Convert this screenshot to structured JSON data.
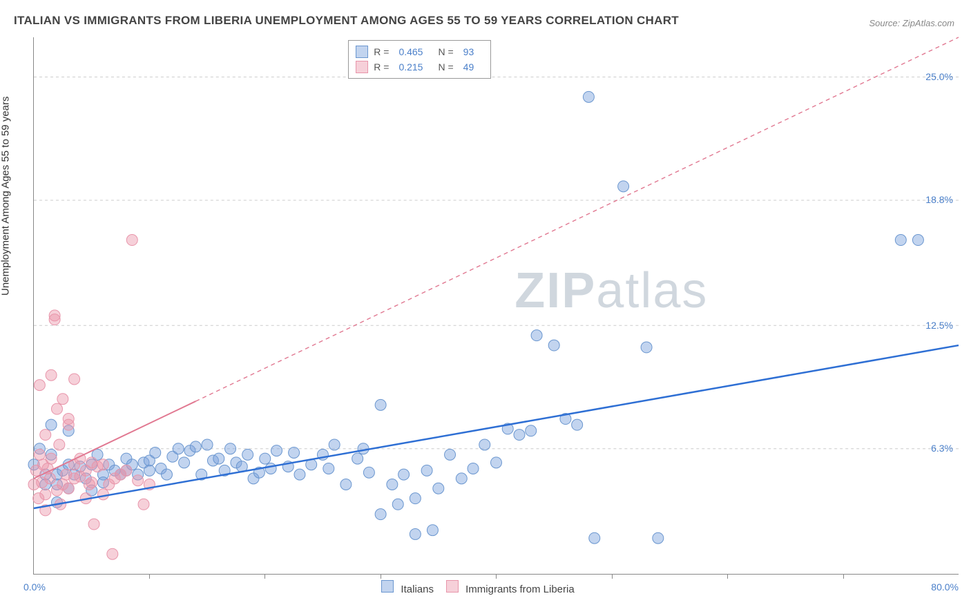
{
  "title": "ITALIAN VS IMMIGRANTS FROM LIBERIA UNEMPLOYMENT AMONG AGES 55 TO 59 YEARS CORRELATION CHART",
  "source": "Source: ZipAtlas.com",
  "ylabel": "Unemployment Among Ages 55 to 59 years",
  "watermark": {
    "text_bold": "ZIP",
    "text_light": "atlas"
  },
  "chart": {
    "type": "scatter-correlation",
    "xlim": [
      0,
      80
    ],
    "ylim": [
      0,
      27
    ],
    "x_left_label": "0.0%",
    "x_right_label": "80.0%",
    "y_tick_labels": [
      {
        "value": 6.3,
        "label": "6.3%"
      },
      {
        "value": 12.5,
        "label": "12.5%"
      },
      {
        "value": 18.8,
        "label": "18.8%"
      },
      {
        "value": 25.0,
        "label": "25.0%"
      }
    ],
    "x_tick_positions": [
      10,
      20,
      30,
      40,
      50,
      60,
      70
    ],
    "background_color": "#ffffff",
    "grid_color": "#cccccc",
    "series": [
      {
        "key": "italians",
        "label": "Italians",
        "R": "0.465",
        "N": "93",
        "marker_color_fill": "rgba(120,160,220,0.45)",
        "marker_color_stroke": "#6a96cf",
        "marker_radius": 8,
        "trend_color": "#2e6fd4",
        "trend_width": 2.5,
        "trend_solid_from": 0,
        "trend_solid_to": 80,
        "trend_y0": 3.3,
        "trend_y80": 11.5,
        "points": [
          [
            0,
            5.5
          ],
          [
            0.5,
            6.3
          ],
          [
            1,
            5
          ],
          [
            1,
            4.5
          ],
          [
            1.5,
            6
          ],
          [
            1.5,
            7.5
          ],
          [
            2,
            5
          ],
          [
            2,
            4.5
          ],
          [
            2,
            3.6
          ],
          [
            2.5,
            5.2
          ],
          [
            3,
            5.5
          ],
          [
            3,
            4.3
          ],
          [
            3,
            7.2
          ],
          [
            3.5,
            5
          ],
          [
            4,
            5.4
          ],
          [
            4.5,
            4.8
          ],
          [
            5,
            5.5
          ],
          [
            5,
            4.2
          ],
          [
            5.5,
            6
          ],
          [
            6,
            5
          ],
          [
            6,
            4.6
          ],
          [
            6.5,
            5.5
          ],
          [
            7,
            5.2
          ],
          [
            7.5,
            5
          ],
          [
            8,
            5.8
          ],
          [
            8,
            5.2
          ],
          [
            8.5,
            5.5
          ],
          [
            9,
            5
          ],
          [
            9.5,
            5.6
          ],
          [
            10,
            5.7
          ],
          [
            10,
            5.2
          ],
          [
            10.5,
            6.1
          ],
          [
            11,
            5.3
          ],
          [
            11.5,
            5
          ],
          [
            12,
            5.9
          ],
          [
            12.5,
            6.3
          ],
          [
            13,
            5.6
          ],
          [
            13.5,
            6.2
          ],
          [
            14,
            6.4
          ],
          [
            14.5,
            5
          ],
          [
            15,
            6.5
          ],
          [
            15.5,
            5.7
          ],
          [
            16,
            5.8
          ],
          [
            16.5,
            5.2
          ],
          [
            17,
            6.3
          ],
          [
            17.5,
            5.6
          ],
          [
            18,
            5.4
          ],
          [
            18.5,
            6
          ],
          [
            19,
            4.8
          ],
          [
            19.5,
            5.1
          ],
          [
            20,
            5.8
          ],
          [
            20.5,
            5.3
          ],
          [
            21,
            6.2
          ],
          [
            22,
            5.4
          ],
          [
            22.5,
            6.1
          ],
          [
            23,
            5
          ],
          [
            24,
            5.5
          ],
          [
            25,
            6
          ],
          [
            25.5,
            5.3
          ],
          [
            26,
            6.5
          ],
          [
            27,
            4.5
          ],
          [
            28,
            5.8
          ],
          [
            28.5,
            6.3
          ],
          [
            29,
            5.1
          ],
          [
            30,
            3
          ],
          [
            30,
            8.5
          ],
          [
            31,
            4.5
          ],
          [
            31.5,
            3.5
          ],
          [
            32,
            5
          ],
          [
            33,
            3.8
          ],
          [
            33,
            2
          ],
          [
            34,
            5.2
          ],
          [
            34.5,
            2.2
          ],
          [
            35,
            4.3
          ],
          [
            36,
            6
          ],
          [
            37,
            4.8
          ],
          [
            38,
            5.3
          ],
          [
            39,
            6.5
          ],
          [
            40,
            5.6
          ],
          [
            41,
            7.3
          ],
          [
            42,
            7
          ],
          [
            43,
            7.2
          ],
          [
            43.5,
            12
          ],
          [
            45,
            11.5
          ],
          [
            46,
            7.8
          ],
          [
            47,
            7.5
          ],
          [
            48.5,
            1.8
          ],
          [
            48,
            24
          ],
          [
            51,
            19.5
          ],
          [
            53,
            11.4
          ],
          [
            54,
            1.8
          ],
          [
            75,
            16.8
          ],
          [
            76.5,
            16.8
          ]
        ]
      },
      {
        "key": "liberia",
        "label": "Immigrants from Liberia",
        "R": "0.215",
        "N": "49",
        "marker_color_fill": "rgba(235,150,170,0.45)",
        "marker_color_stroke": "#e895aa",
        "marker_radius": 8,
        "trend_color": "#e17891",
        "trend_width": 2,
        "trend_solid_from": 0,
        "trend_solid_to": 14,
        "trend_dashed_to": 80,
        "trend_y0": 4.8,
        "trend_y80": 27,
        "points": [
          [
            0,
            4.5
          ],
          [
            0.2,
            5.2
          ],
          [
            0.4,
            3.8
          ],
          [
            0.5,
            6
          ],
          [
            0.5,
            9.5
          ],
          [
            0.7,
            4.6
          ],
          [
            0.8,
            5.5
          ],
          [
            1,
            3.2
          ],
          [
            1,
            4
          ],
          [
            1,
            7
          ],
          [
            1.2,
            5.3
          ],
          [
            1.4,
            4.8
          ],
          [
            1.5,
            10
          ],
          [
            1.5,
            5.8
          ],
          [
            1.8,
            13
          ],
          [
            1.8,
            12.8
          ],
          [
            2,
            8.3
          ],
          [
            2,
            4.2
          ],
          [
            2.2,
            6.5
          ],
          [
            2.3,
            3.5
          ],
          [
            2.5,
            4.5
          ],
          [
            2.5,
            8.8
          ],
          [
            2.8,
            5
          ],
          [
            3,
            7.5
          ],
          [
            3,
            7.8
          ],
          [
            3,
            4.3
          ],
          [
            3.5,
            9.8
          ],
          [
            3.5,
            5.5
          ],
          [
            3.5,
            4.8
          ],
          [
            4,
            4.9
          ],
          [
            4,
            5.8
          ],
          [
            4.5,
            5.2
          ],
          [
            4.5,
            3.8
          ],
          [
            4.8,
            4.5
          ],
          [
            5,
            5.6
          ],
          [
            5,
            4.6
          ],
          [
            5.2,
            2.5
          ],
          [
            5.5,
            5.4
          ],
          [
            6,
            4
          ],
          [
            6,
            5.5
          ],
          [
            6.5,
            4.5
          ],
          [
            6.8,
            1
          ],
          [
            7,
            4.8
          ],
          [
            7.5,
            5
          ],
          [
            8,
            5.2
          ],
          [
            8.5,
            16.8
          ],
          [
            9,
            4.7
          ],
          [
            9.5,
            3.5
          ],
          [
            10,
            4.5
          ]
        ]
      }
    ]
  },
  "top_legend": {
    "rows": [
      {
        "swatch_series": "italians",
        "R_label": "R =",
        "R_val": "0.465",
        "N_label": "N =",
        "N_val": "93"
      },
      {
        "swatch_series": "liberia",
        "R_label": "R =",
        "R_val": "0.215",
        "N_label": "N =",
        "N_val": "49"
      }
    ]
  }
}
